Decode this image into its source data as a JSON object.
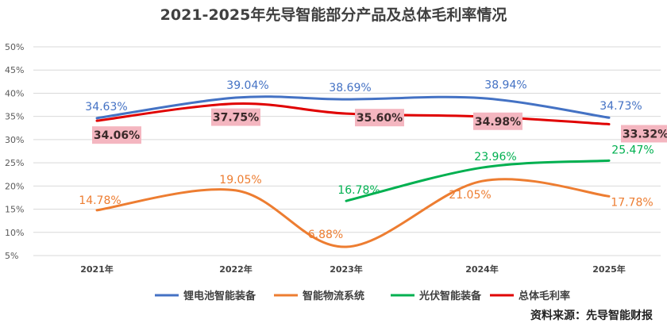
{
  "chart_data": {
    "type": "line",
    "title": "2021-2025年先导智能部分产品及总体毛利率情况",
    "categories": [
      "2021年",
      "2022年",
      "2023年",
      "2024年",
      "2025年"
    ],
    "y_ticks": [
      "5%",
      "10%",
      "15%",
      "20%",
      "25%",
      "30%",
      "35%",
      "40%",
      "45%",
      "50%"
    ],
    "ylim": [
      5,
      50
    ],
    "grid": true,
    "legend_position": "bottom",
    "series": [
      {
        "name": "锂电池智能装备",
        "color": "#4472c4",
        "values": [
          34.63,
          39.04,
          38.69,
          38.94,
          34.73
        ],
        "labels": [
          "34.63%",
          "39.04%",
          "38.69%",
          "38.94%",
          "34.73%"
        ]
      },
      {
        "name": "智能物流系统",
        "color": "#ed7d31",
        "values": [
          14.78,
          19.05,
          6.88,
          21.05,
          17.78
        ],
        "labels": [
          "14.78%",
          "19.05%",
          "6.88%",
          "21.05%",
          "17.78%"
        ]
      },
      {
        "name": "光伏智能装备",
        "color": "#00b050",
        "values": [
          null,
          null,
          16.78,
          23.96,
          25.47
        ],
        "labels": [
          "",
          "",
          "16.78%",
          "23.96%",
          "25.47%"
        ]
      },
      {
        "name": "总体毛利率",
        "color": "#e00000",
        "values": [
          34.06,
          37.75,
          35.6,
          34.98,
          33.32
        ],
        "labels": [
          "34.06%",
          "37.75%",
          "35.60%",
          "34.98%",
          "33.32%"
        ]
      }
    ],
    "source": "资料来源：先导智能财报"
  }
}
